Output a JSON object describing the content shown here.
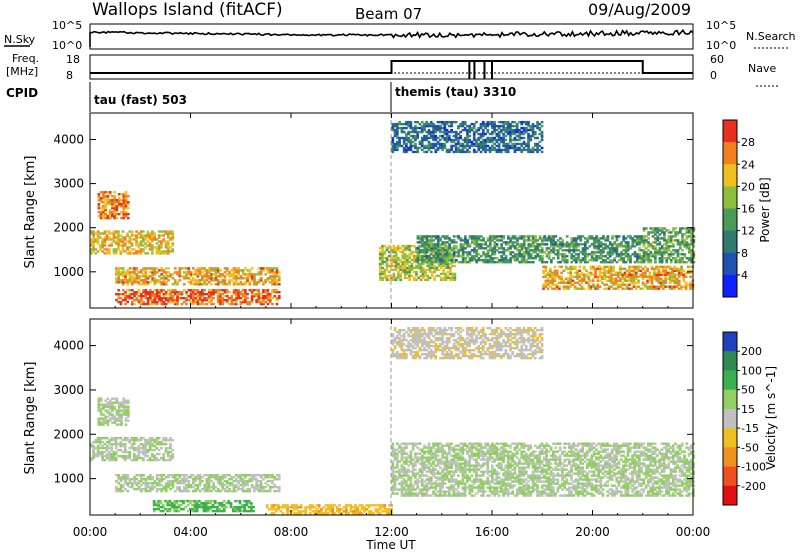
{
  "header": {
    "station": "Wallops Island (fitACF)",
    "beam": "Beam 07",
    "date": "09/Aug/2009"
  },
  "noise_panel": {
    "left_label": "N.Sky",
    "left_ticks": [
      "10^5",
      "10^0"
    ],
    "right_label": "N.Search",
    "right_ticks": [
      "10^5",
      "10^0"
    ]
  },
  "freq_panel": {
    "left_label_line1": "Freq.",
    "left_label_line2": "[MHz]",
    "left_ticks": [
      "18",
      "8"
    ],
    "right_label": "Nave",
    "right_ticks": [
      "60",
      "0"
    ]
  },
  "cpid_panel": {
    "label": "CPID",
    "segments": [
      {
        "text": "tau (fast) 503",
        "start_hour": 0
      },
      {
        "text": "themis (tau) 3310",
        "start_hour": 12
      }
    ]
  },
  "power_panel": {
    "ylabel": "Slant Range [km]",
    "yticks": [
      "1000",
      "2000",
      "3000",
      "4000"
    ],
    "colorbar_label": "Power [dB]",
    "colorbar_ticks": [
      "4",
      "8",
      "12",
      "16",
      "20",
      "24",
      "28"
    ],
    "colorbar_colors": [
      "#1020ff",
      "#2050b0",
      "#307a70",
      "#4a9a5a",
      "#8cbf40",
      "#f0c020",
      "#f08020",
      "#e83020"
    ]
  },
  "velocity_panel": {
    "ylabel": "Slant Range [km]",
    "yticks": [
      "1000",
      "2000",
      "3000",
      "4000"
    ],
    "colorbar_label": "Velocity [m s^-1]",
    "colorbar_ticks": [
      "200",
      "100",
      "50",
      "15",
      "-15",
      "-50",
      "-100",
      "-200"
    ],
    "colorbar_colors": [
      "#2040c0",
      "#2e8a50",
      "#3cb050",
      "#90d060",
      "#c0c0c0",
      "#f0c020",
      "#f09020",
      "#f05020",
      "#e01010"
    ]
  },
  "xaxis": {
    "label": "Time UT",
    "ticks": [
      "00:00",
      "04:00",
      "08:00",
      "12:00",
      "16:00",
      "20:00",
      "00:00"
    ]
  },
  "chart_data": [
    {
      "type": "heatmap",
      "title": "Power [dB]",
      "xlabel": "Time UT",
      "ylabel": "Slant Range [km]",
      "xlim": [
        0,
        24
      ],
      "ylim": [
        180,
        4600
      ],
      "clim": [
        0,
        30
      ],
      "regions": [
        {
          "t0": 0.3,
          "t1": 1.5,
          "r0": 2200,
          "r1": 2800,
          "power": 24
        },
        {
          "t0": 0.0,
          "t1": 3.3,
          "r0": 1400,
          "r1": 1900,
          "power": 20
        },
        {
          "t0": 1.0,
          "t1": 7.5,
          "r0": 700,
          "r1": 1100,
          "power": 22
        },
        {
          "t0": 1.0,
          "t1": 7.5,
          "r0": 250,
          "r1": 600,
          "power": 26
        },
        {
          "t0": 11.5,
          "t1": 14.5,
          "r0": 800,
          "r1": 1600,
          "power": 18
        },
        {
          "t0": 13.0,
          "t1": 22.0,
          "r0": 1200,
          "r1": 1800,
          "power": 12
        },
        {
          "t0": 18.0,
          "t1": 24.0,
          "r0": 600,
          "r1": 1100,
          "power": 22
        },
        {
          "t0": 22.0,
          "t1": 24.0,
          "r0": 1200,
          "r1": 2000,
          "power": 14
        },
        {
          "t0": 12.0,
          "t1": 18.0,
          "r0": 3700,
          "r1": 4400,
          "power": 8
        }
      ]
    },
    {
      "type": "heatmap",
      "title": "Velocity [m s^-1]",
      "xlabel": "Time UT",
      "ylabel": "Slant Range [km]",
      "xlim": [
        0,
        24
      ],
      "ylim": [
        180,
        4600
      ],
      "clim": [
        -250,
        250
      ],
      "regions": [
        {
          "t0": 0.3,
          "t1": 1.5,
          "r0": 2200,
          "r1": 2800,
          "velocity": 0
        },
        {
          "t0": 0.0,
          "t1": 3.3,
          "r0": 1400,
          "r1": 1900,
          "velocity": 0
        },
        {
          "t0": 1.0,
          "t1": 7.5,
          "r0": 700,
          "r1": 1100,
          "velocity": 0
        },
        {
          "t0": 2.5,
          "t1": 6.5,
          "r0": 250,
          "r1": 500,
          "velocity": 40
        },
        {
          "t0": 7.0,
          "t1": 12.0,
          "r0": 200,
          "r1": 400,
          "velocity": -60
        },
        {
          "t0": 12.0,
          "t1": 24.0,
          "r0": 600,
          "r1": 1800,
          "velocity": 0
        },
        {
          "t0": 12.0,
          "t1": 18.0,
          "r0": 3700,
          "r1": 4400,
          "velocity": -20
        }
      ]
    }
  ]
}
